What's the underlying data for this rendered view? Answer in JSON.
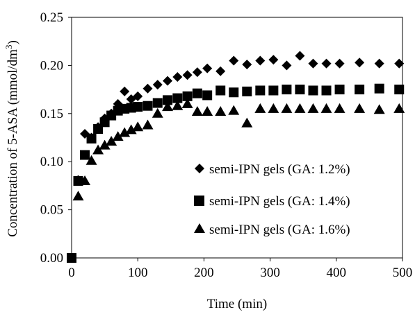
{
  "chart_data": {
    "type": "scatter",
    "title": "",
    "xlabel": "Time (min)",
    "ylabel": "Concentration of 5-ASA (mmol/dm",
    "ylabel_sup": "3",
    "ylabel_suffix": ")",
    "xlim": [
      0,
      500
    ],
    "ylim": [
      0,
      0.25
    ],
    "xticks": [
      "0",
      "100",
      "200",
      "300",
      "400",
      "500"
    ],
    "xtick_values": [
      0,
      100,
      200,
      300,
      400,
      500
    ],
    "yticks": [
      "0.00",
      "0.05",
      "0.10",
      "0.15",
      "0.20",
      "0.25"
    ],
    "ytick_values": [
      0,
      0.05,
      0.1,
      0.15,
      0.2,
      0.25
    ],
    "grid": false,
    "legend_position": "center-right",
    "series": [
      {
        "name": "semi-IPN gels (GA: 1.2%)",
        "marker": "diamond",
        "color": "#000000",
        "x": [
          0,
          10,
          20,
          30,
          40,
          50,
          60,
          70,
          80,
          90,
          100,
          115,
          130,
          145,
          160,
          175,
          190,
          205,
          225,
          245,
          265,
          285,
          305,
          325,
          345,
          365,
          385,
          405,
          435,
          465,
          495
        ],
        "y": [
          0.0,
          0.081,
          0.129,
          0.125,
          0.136,
          0.145,
          0.15,
          0.16,
          0.173,
          0.165,
          0.168,
          0.176,
          0.18,
          0.184,
          0.188,
          0.19,
          0.193,
          0.197,
          0.194,
          0.205,
          0.201,
          0.205,
          0.206,
          0.2,
          0.21,
          0.202,
          0.202,
          0.202,
          0.203,
          0.202,
          0.202
        ]
      },
      {
        "name": "semi-IPN gels (GA: 1.4%)",
        "marker": "square",
        "color": "#000000",
        "x": [
          0,
          10,
          20,
          30,
          40,
          50,
          60,
          70,
          80,
          90,
          100,
          115,
          130,
          145,
          160,
          175,
          190,
          205,
          225,
          245,
          265,
          285,
          305,
          325,
          345,
          365,
          385,
          405,
          435,
          465,
          495
        ],
        "y": [
          0.0,
          0.08,
          0.107,
          0.124,
          0.134,
          0.141,
          0.148,
          0.153,
          0.155,
          0.156,
          0.157,
          0.158,
          0.161,
          0.164,
          0.166,
          0.168,
          0.171,
          0.169,
          0.174,
          0.172,
          0.173,
          0.174,
          0.174,
          0.175,
          0.175,
          0.174,
          0.174,
          0.175,
          0.175,
          0.176,
          0.175
        ]
      },
      {
        "name": "semi-IPN gels (GA: 1.6%)",
        "marker": "triangle",
        "color": "#000000",
        "x": [
          10,
          20,
          30,
          40,
          50,
          60,
          70,
          80,
          90,
          100,
          115,
          130,
          145,
          160,
          175,
          190,
          205,
          225,
          245,
          265,
          285,
          305,
          325,
          345,
          365,
          385,
          405,
          435,
          465,
          495
        ],
        "y": [
          0.064,
          0.08,
          0.101,
          0.112,
          0.117,
          0.121,
          0.126,
          0.13,
          0.133,
          0.136,
          0.138,
          0.15,
          0.157,
          0.158,
          0.16,
          0.152,
          0.152,
          0.152,
          0.153,
          0.14,
          0.155,
          0.155,
          0.155,
          0.155,
          0.155,
          0.155,
          0.155,
          0.155,
          0.154,
          0.155
        ]
      }
    ]
  }
}
